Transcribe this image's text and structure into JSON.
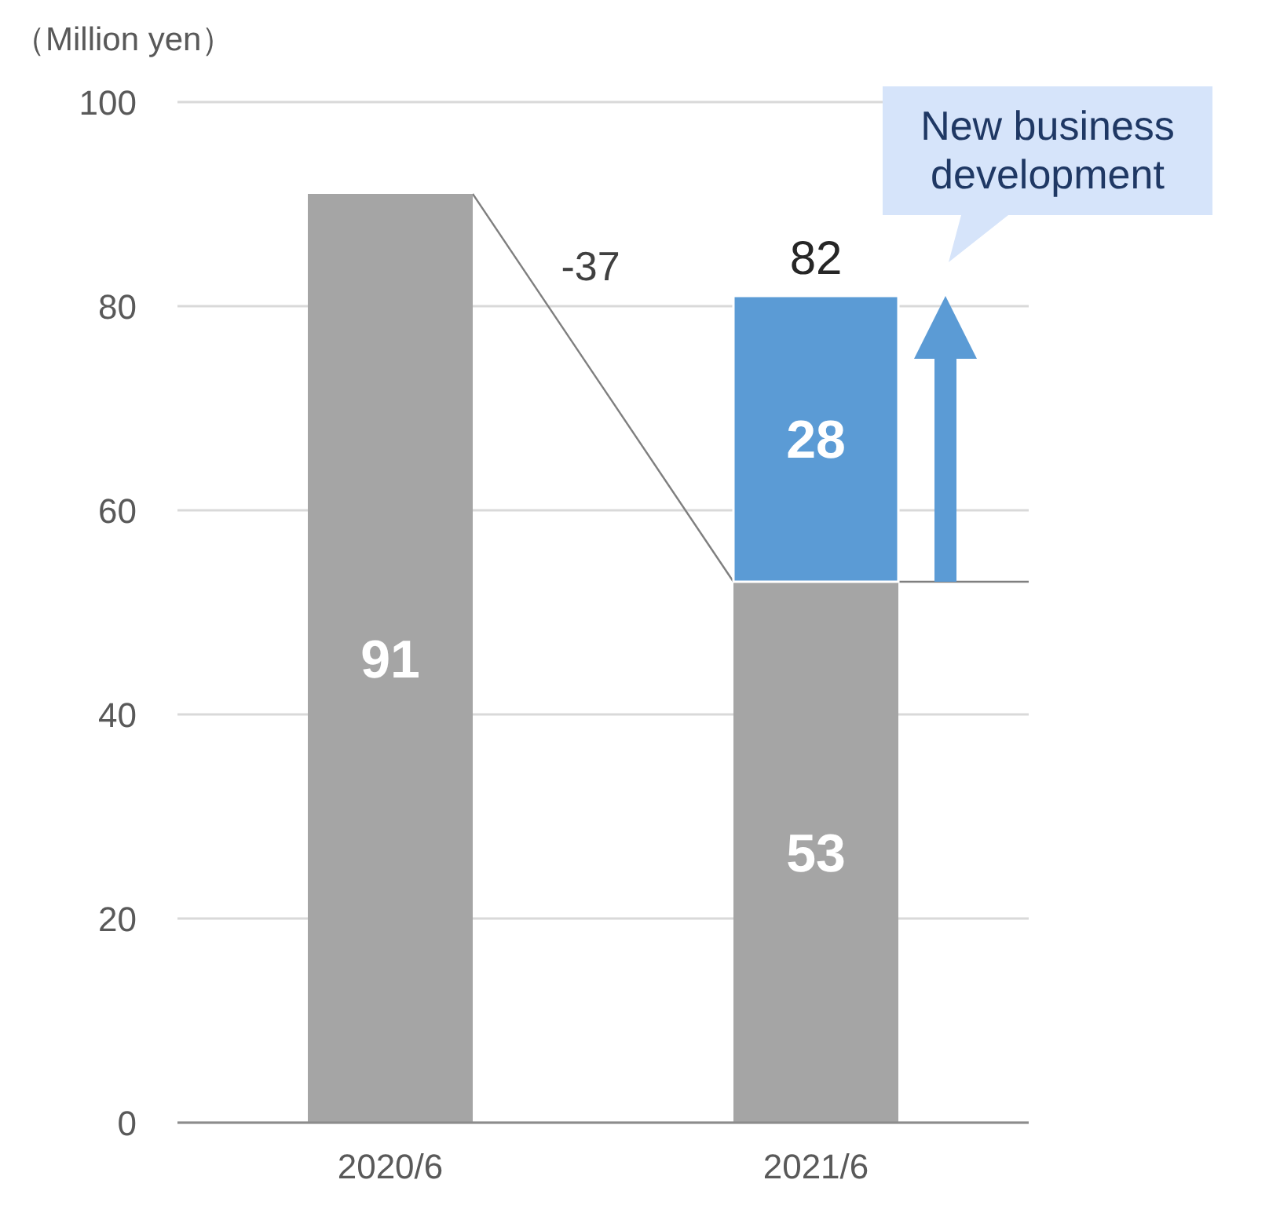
{
  "chart_data": {
    "type": "bar",
    "stacked": true,
    "ylabel": "（Million  yen）",
    "categories": [
      "2020/6",
      "2021/6"
    ],
    "series": [
      {
        "color": "#a5a5a5",
        "values": [
          91,
          53
        ]
      },
      {
        "color": "#5b9bd5",
        "values": [
          null,
          28
        ]
      }
    ],
    "totals": [
      null,
      "82"
    ],
    "data_labels": true,
    "ylim": [
      0,
      100
    ],
    "yticks": [
      0,
      20,
      40,
      60,
      80,
      100
    ],
    "grid": "y",
    "annotations": [
      "-37",
      "New business development"
    ]
  }
}
